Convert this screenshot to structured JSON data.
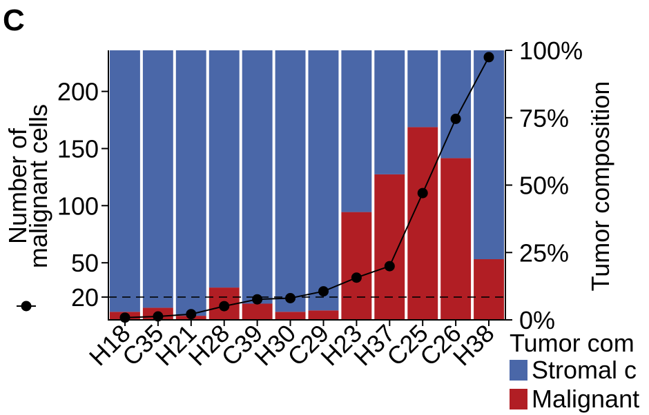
{
  "panel_label": "C",
  "chart_data": {
    "type": "bar",
    "stacked": true,
    "categories": [
      "H18",
      "C35",
      "H21",
      "H28",
      "C39",
      "H30",
      "C29",
      "H23",
      "H37",
      "C25",
      "C26",
      "H38"
    ],
    "series": [
      {
        "name": "Stromal c",
        "color": "#4A67A8",
        "values": [
          97,
          95.5,
          98.5,
          88,
          94,
          97,
          96.5,
          60,
          46,
          28.5,
          40,
          77.5
        ]
      },
      {
        "name": "Malignant",
        "color": "#B11E24",
        "values": [
          3,
          4.5,
          1.5,
          12,
          6,
          3,
          3.5,
          40,
          54,
          71.5,
          60,
          22.5
        ]
      }
    ],
    "line_series": {
      "marker": "circle",
      "color": "#000000",
      "values": [
        2,
        3,
        5,
        12,
        18,
        19,
        25,
        37,
        47,
        111,
        176,
        230
      ]
    },
    "threshold_line": {
      "value": 20,
      "style": "dashed"
    },
    "y_left": {
      "label_lines": [
        "Number of",
        "malignant cells"
      ],
      "ticks": [
        20,
        50,
        100,
        150,
        200
      ],
      "tick_labels": [
        "20",
        "50",
        "100",
        "150",
        "200"
      ]
    },
    "y_right": {
      "label": "Tumor composition",
      "ticks": [
        0,
        25,
        50,
        75,
        100
      ],
      "tick_labels": [
        "0%",
        "25%",
        "50%",
        "75%",
        "100%"
      ]
    },
    "legend": {
      "title": "Tumor com",
      "placement": "bottom-right",
      "items": [
        {
          "label": "Stromal c",
          "color": "#4A67A8"
        },
        {
          "label": "Malignant",
          "color": "#B11E24"
        }
      ]
    },
    "legend_marker_label": ""
  }
}
